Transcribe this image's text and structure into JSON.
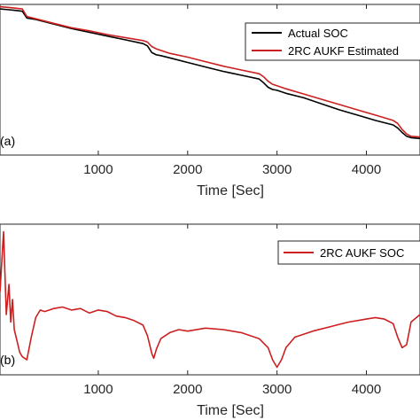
{
  "colors": {
    "actual": "#000000",
    "estimated": "#cc1f1f",
    "axis": "#262626"
  },
  "chart_data": [
    {
      "type": "line",
      "panel_label": "(a)",
      "xlabel": "Time [Sec]",
      "ylabel": "",
      "xlim": [
        -100,
        4600
      ],
      "ylim": [
        0,
        1
      ],
      "grid": false,
      "legend_position": "top-right",
      "x_ticks": [
        1000,
        2000,
        3000,
        4000
      ],
      "x_tick_labels": [
        "1000",
        "2000",
        "3000",
        "4000"
      ],
      "series": [
        {
          "name": "Actual SOC",
          "color": "#000000",
          "x": [
            -100,
            0,
            80,
            150,
            200,
            300,
            500,
            700,
            900,
            1100,
            1300,
            1500,
            1550,
            1600,
            1650,
            1700,
            1800,
            2000,
            2200,
            2400,
            2600,
            2800,
            2850,
            2900,
            2950,
            3000,
            3100,
            3300,
            3500,
            3700,
            3900,
            4100,
            4300,
            4350,
            4400,
            4450,
            4500,
            4600
          ],
          "y": [
            0.97,
            0.965,
            0.96,
            0.955,
            0.91,
            0.9,
            0.87,
            0.84,
            0.815,
            0.79,
            0.765,
            0.74,
            0.725,
            0.68,
            0.665,
            0.66,
            0.645,
            0.615,
            0.585,
            0.555,
            0.53,
            0.505,
            0.48,
            0.45,
            0.435,
            0.43,
            0.41,
            0.38,
            0.34,
            0.3,
            0.265,
            0.23,
            0.2,
            0.18,
            0.15,
            0.125,
            0.115,
            0.11
          ]
        },
        {
          "name": "2RC AUKF Estimated",
          "color": "#cc1f1f",
          "x": [
            -100,
            0,
            80,
            150,
            200,
            300,
            500,
            700,
            900,
            1100,
            1300,
            1500,
            1550,
            1600,
            1650,
            1700,
            1800,
            2000,
            2200,
            2400,
            2600,
            2800,
            2850,
            2900,
            2950,
            3000,
            3100,
            3300,
            3500,
            3700,
            3900,
            4100,
            4300,
            4350,
            4400,
            4450,
            4500,
            4600
          ],
          "y": [
            0.985,
            0.98,
            0.975,
            0.97,
            0.92,
            0.905,
            0.875,
            0.845,
            0.825,
            0.8,
            0.78,
            0.76,
            0.75,
            0.72,
            0.705,
            0.695,
            0.675,
            0.65,
            0.62,
            0.59,
            0.565,
            0.54,
            0.52,
            0.49,
            0.47,
            0.46,
            0.44,
            0.405,
            0.37,
            0.335,
            0.3,
            0.265,
            0.23,
            0.21,
            0.17,
            0.14,
            0.125,
            0.12
          ]
        }
      ]
    },
    {
      "type": "line",
      "panel_label": "(b)",
      "xlabel": "Time [Sec]",
      "ylabel": "",
      "xlim": [
        -100,
        4600
      ],
      "ylim": [
        0,
        1
      ],
      "grid": false,
      "legend_position": "top-right",
      "x_ticks": [
        1000,
        2000,
        3000,
        4000
      ],
      "x_tick_labels": [
        "1000",
        "2000",
        "3000",
        "4000"
      ],
      "series": [
        {
          "name": "2RC AUKF SOC",
          "color": "#cc1f1f",
          "x": [
            -100,
            -60,
            -30,
            0,
            20,
            40,
            60,
            80,
            100,
            120,
            150,
            200,
            250,
            300,
            350,
            400,
            500,
            600,
            700,
            800,
            900,
            1000,
            1100,
            1200,
            1300,
            1400,
            1500,
            1550,
            1600,
            1620,
            1650,
            1700,
            1800,
            1900,
            2000,
            2200,
            2400,
            2600,
            2800,
            2900,
            2950,
            3000,
            3050,
            3100,
            3200,
            3400,
            3600,
            3800,
            4000,
            4100,
            4200,
            4300,
            4350,
            4400,
            4450,
            4500,
            4600
          ],
          "y": [
            0.55,
            0.95,
            0.4,
            0.6,
            0.35,
            0.5,
            0.3,
            0.25,
            0.2,
            0.15,
            0.12,
            0.1,
            0.25,
            0.38,
            0.43,
            0.42,
            0.44,
            0.45,
            0.43,
            0.44,
            0.41,
            0.43,
            0.42,
            0.39,
            0.38,
            0.36,
            0.33,
            0.26,
            0.14,
            0.11,
            0.17,
            0.24,
            0.28,
            0.3,
            0.29,
            0.31,
            0.3,
            0.28,
            0.24,
            0.18,
            0.1,
            0.05,
            0.1,
            0.18,
            0.25,
            0.29,
            0.32,
            0.35,
            0.37,
            0.38,
            0.37,
            0.34,
            0.25,
            0.18,
            0.2,
            0.35,
            0.4
          ]
        }
      ]
    }
  ]
}
